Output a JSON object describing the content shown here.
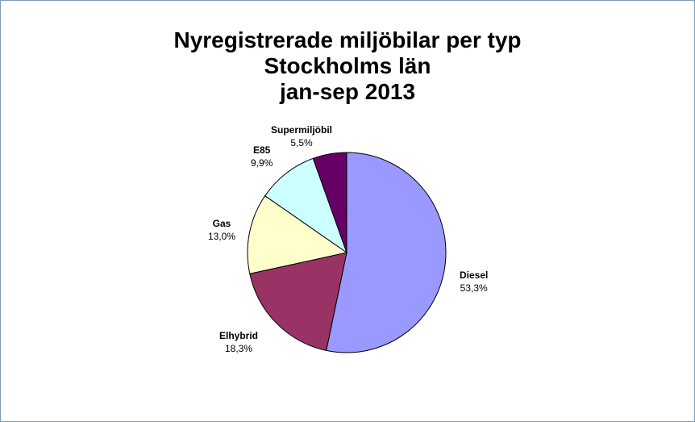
{
  "chart_data": {
    "type": "pie",
    "title_lines": [
      "Nyregistrerade miljöbilar per typ",
      "Stockholms län",
      "jan-sep 2013"
    ],
    "slices": [
      {
        "name": "Diesel",
        "value": 53.3,
        "label": "53,3%",
        "color": "#9999ff"
      },
      {
        "name": "Elhybrid",
        "value": 18.3,
        "label": "18,3%",
        "color": "#993366"
      },
      {
        "name": "Gas",
        "value": 13.0,
        "label": "13,0%",
        "color": "#ffffcc"
      },
      {
        "name": "E85",
        "value": 9.9,
        "label": "9,9%",
        "color": "#ccffff"
      },
      {
        "name": "Supermiljöbil",
        "value": 5.5,
        "label": "5,5%",
        "color": "#660066"
      }
    ]
  }
}
